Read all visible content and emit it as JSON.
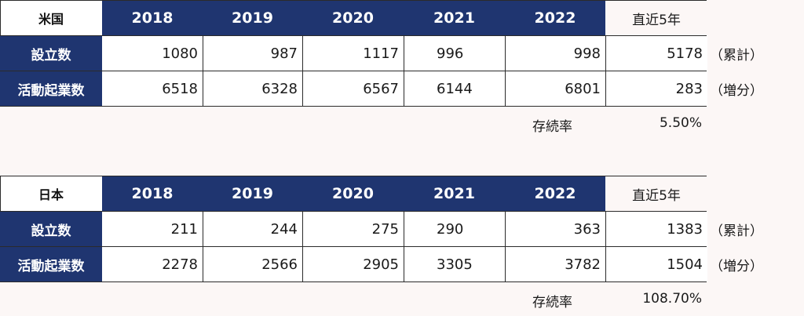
{
  "tables": [
    {
      "country": "米国",
      "years": [
        "2018",
        "2019",
        "2020",
        "2021",
        "2022"
      ],
      "recent_label": "直近5年",
      "rows": [
        {
          "label": "設立数",
          "values": [
            "1080",
            "987",
            "1117",
            "996",
            "998"
          ],
          "recent": "5178",
          "suffix": "（累計）"
        },
        {
          "label": "活動起業数",
          "values": [
            "6518",
            "6328",
            "6567",
            "6144",
            "6801"
          ],
          "recent": "283",
          "suffix": "（増分）"
        }
      ],
      "rate_label": "存続率",
      "rate_value": "5.50%"
    },
    {
      "country": "日本",
      "years": [
        "2018",
        "2019",
        "2020",
        "2021",
        "2022"
      ],
      "recent_label": "直近5年",
      "rows": [
        {
          "label": "設立数",
          "values": [
            "211",
            "244",
            "275",
            "290",
            "363"
          ],
          "recent": "1383",
          "suffix": "（累計）"
        },
        {
          "label": "活動起業数",
          "values": [
            "2278",
            "2566",
            "2905",
            "3305",
            "3782"
          ],
          "recent": "1504",
          "suffix": "（増分）"
        }
      ],
      "rate_label": "存続率",
      "rate_value": "108.70%"
    }
  ]
}
